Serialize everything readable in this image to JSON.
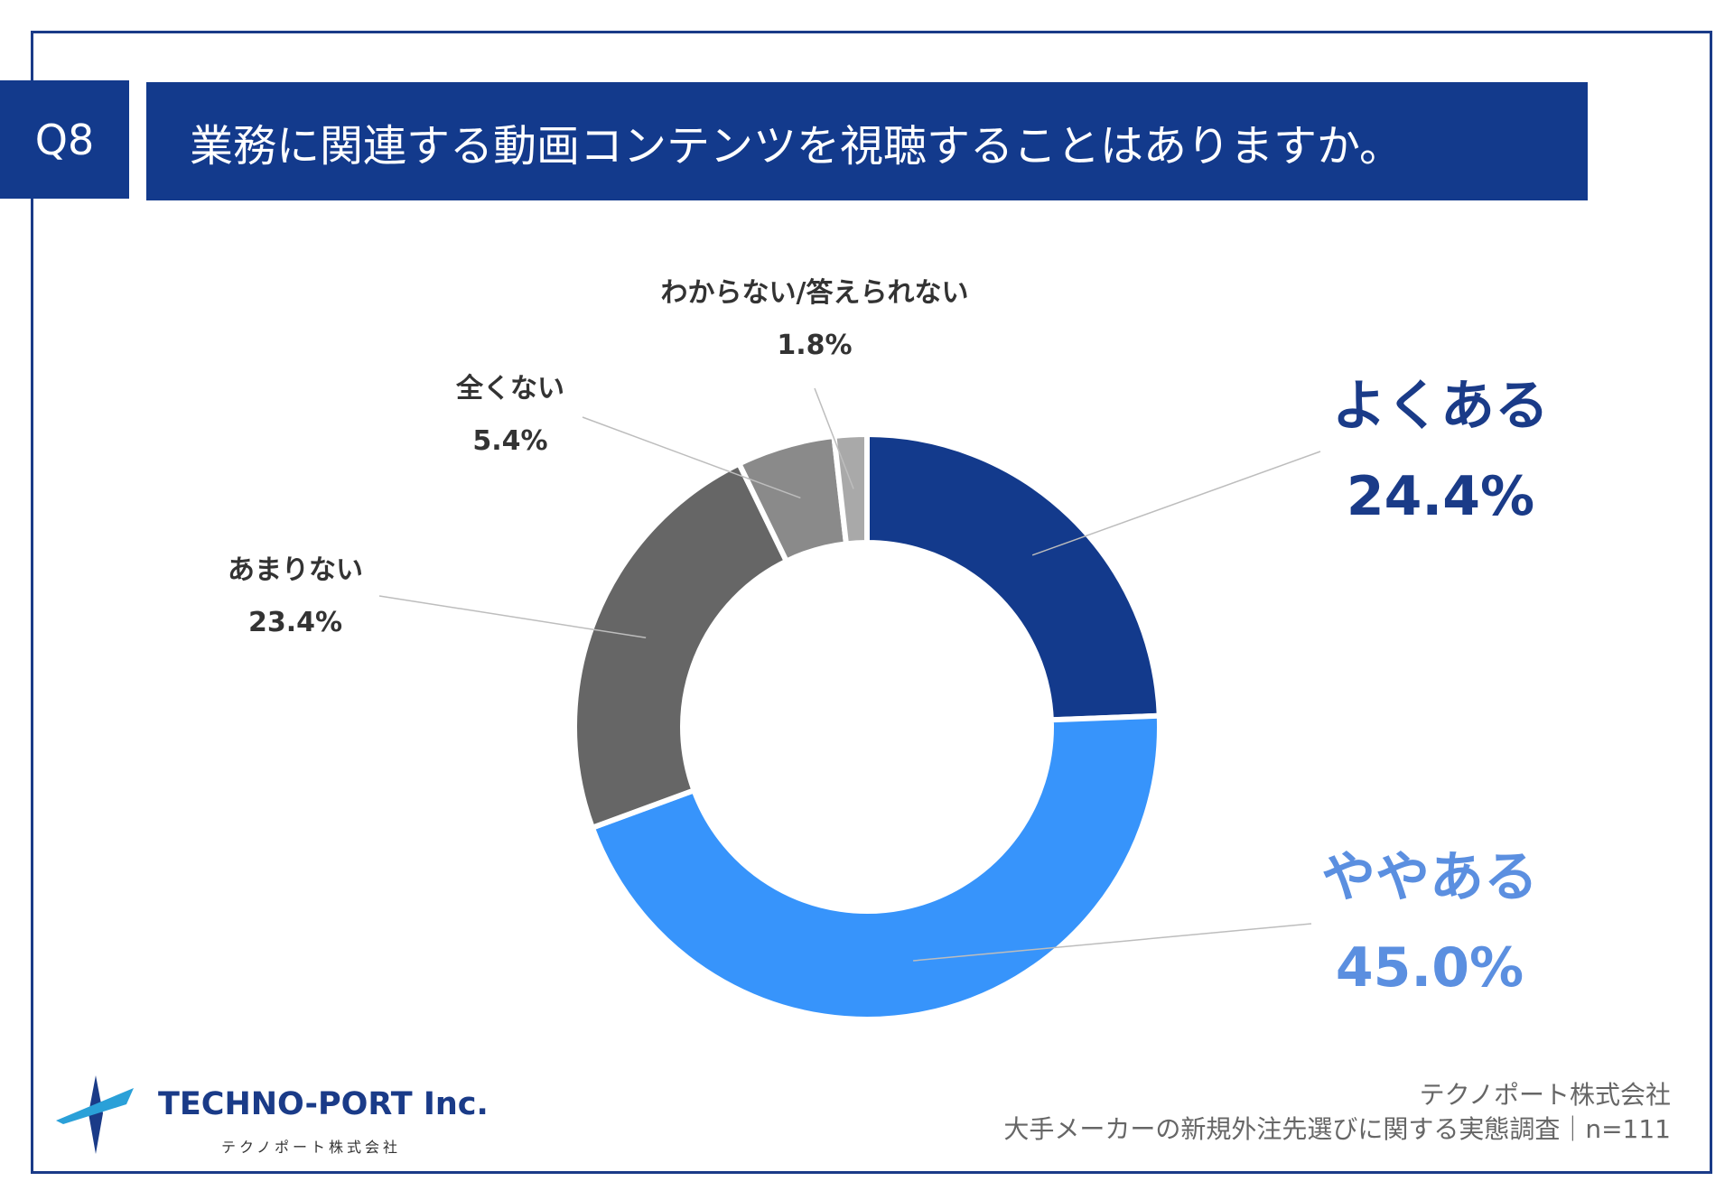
{
  "header": {
    "badge": "Q8",
    "question": "業務に関連する動画コンテンツを視聴することはありますか。"
  },
  "chart_data": {
    "type": "pie",
    "variant": "donut",
    "categories": [
      "よくある",
      "ややある",
      "あまりない",
      "全くない",
      "わからない/答えられない"
    ],
    "values": [
      24.4,
      45.0,
      23.4,
      5.4,
      1.8
    ],
    "value_labels": [
      "24.4%",
      "45.0%",
      "23.4%",
      "5.4%",
      "1.8%"
    ],
    "colors": [
      "#133a8c",
      "#3794fb",
      "#666666",
      "#8a8a8a",
      "#a9a9a9"
    ],
    "label_colors": [
      "#1a3b88",
      "#5b8fe0",
      "#333333",
      "#333333",
      "#333333"
    ],
    "start_angle_deg": 0,
    "direction": "clockwise"
  },
  "logo": {
    "name": "TECHNO-PORT Inc.",
    "sub": "テクノポート株式会社"
  },
  "footer": {
    "company": "テクノポート株式会社",
    "survey": "大手メーカーの新規外注先選びに関する実態調査｜n=111"
  }
}
